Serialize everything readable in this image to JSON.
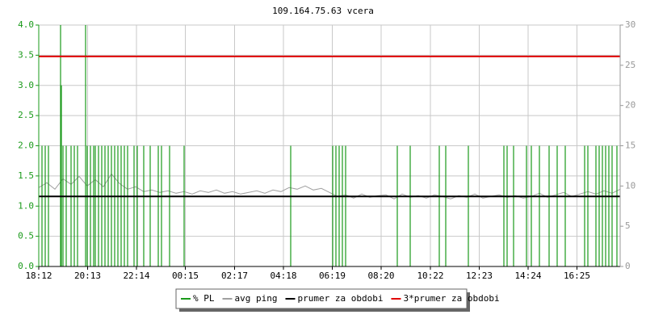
{
  "chart_data": {
    "type": "line",
    "title": "109.164.75.63 vcera",
    "xlim": [
      0,
      1440
    ],
    "xticks": [
      {
        "value": 0,
        "label": "18:12"
      },
      {
        "value": 121,
        "label": "20:13"
      },
      {
        "value": 242,
        "label": "22:14"
      },
      {
        "value": 363,
        "label": "00:15"
      },
      {
        "value": 485,
        "label": "02:17"
      },
      {
        "value": 606,
        "label": "04:18"
      },
      {
        "value": 727,
        "label": "06:19"
      },
      {
        "value": 848,
        "label": "08:20"
      },
      {
        "value": 970,
        "label": "10:22"
      },
      {
        "value": 1091,
        "label": "12:23"
      },
      {
        "value": 1212,
        "label": "14:24"
      },
      {
        "value": 1333,
        "label": "16:25"
      }
    ],
    "ylim": [
      0,
      4
    ],
    "yticks": [
      {
        "value": 0,
        "label": "0.0"
      },
      {
        "value": 0.5,
        "label": "0.5"
      },
      {
        "value": 1,
        "label": "1.0"
      },
      {
        "value": 1.5,
        "label": "1.5"
      },
      {
        "value": 2,
        "label": "2.0"
      },
      {
        "value": 2.5,
        "label": "2.5"
      },
      {
        "value": 3,
        "label": "3.0"
      },
      {
        "value": 3.5,
        "label": "3.5"
      },
      {
        "value": 4,
        "label": "4.0"
      }
    ],
    "y2lim": [
      0,
      30
    ],
    "y2ticks": [
      0,
      5,
      10,
      15,
      20,
      25,
      30
    ],
    "grid": true,
    "series": [
      {
        "name": "% PL",
        "color": "#1a9a1a",
        "style": "spikes",
        "x": [
          8,
          16,
          24,
          54,
          56,
          60,
          68,
          80,
          88,
          96,
          116,
          120,
          128,
          136,
          140,
          148,
          156,
          164,
          172,
          180,
          188,
          196,
          204,
          212,
          220,
          236,
          244,
          260,
          276,
          296,
          304,
          324,
          360,
          624,
          728,
          736,
          744,
          752,
          760,
          888,
          920,
          992,
          1008,
          1064,
          1152,
          1160,
          1176,
          1208,
          1220,
          1240,
          1264,
          1284,
          1304,
          1352,
          1360,
          1380,
          1388,
          1396,
          1404,
          1412,
          1420,
          1432
        ],
        "values": [
          2,
          2,
          2,
          4,
          3,
          2,
          2,
          2,
          2,
          2,
          4,
          2,
          2,
          2,
          2,
          2,
          2,
          2,
          2,
          2,
          2,
          2,
          2,
          2,
          2,
          2,
          2,
          2,
          2,
          2,
          2,
          2,
          2,
          2,
          2,
          2,
          2,
          2,
          2,
          2,
          2,
          2,
          2,
          2,
          2,
          2,
          2,
          2,
          2,
          2,
          2,
          2,
          2,
          2,
          2,
          2,
          2,
          2,
          2,
          2,
          2,
          2
        ]
      },
      {
        "name": "avg ping",
        "color": "#a0a0a0",
        "style": "line",
        "axis": "y2",
        "x": [
          0,
          20,
          40,
          60,
          80,
          100,
          120,
          140,
          160,
          180,
          200,
          220,
          240,
          260,
          280,
          300,
          320,
          340,
          360,
          380,
          400,
          420,
          440,
          460,
          480,
          500,
          520,
          540,
          560,
          580,
          600,
          620,
          640,
          660,
          680,
          700,
          720,
          740,
          760,
          780,
          800,
          820,
          840,
          860,
          880,
          900,
          920,
          940,
          960,
          980,
          1000,
          1020,
          1040,
          1060,
          1080,
          1100,
          1120,
          1140,
          1160,
          1180,
          1200,
          1220,
          1240,
          1260,
          1280,
          1300,
          1320,
          1340,
          1360,
          1380,
          1400,
          1420,
          1440
        ],
        "values": [
          9.8,
          10.4,
          9.6,
          10.9,
          10.2,
          11.2,
          10.0,
          10.8,
          9.9,
          11.5,
          10.3,
          9.6,
          9.9,
          9.3,
          9.5,
          9.2,
          9.4,
          9.1,
          9.3,
          9.0,
          9.4,
          9.2,
          9.5,
          9.1,
          9.3,
          9.0,
          9.2,
          9.4,
          9.1,
          9.5,
          9.3,
          9.8,
          9.6,
          10.0,
          9.5,
          9.7,
          9.2,
          8.7,
          8.9,
          8.5,
          9.0,
          8.6,
          8.8,
          8.9,
          8.4,
          9.0,
          8.6,
          8.8,
          8.5,
          8.9,
          8.7,
          8.4,
          8.8,
          8.6,
          9.0,
          8.5,
          8.7,
          8.9,
          8.6,
          8.8,
          8.5,
          8.7,
          9.1,
          8.6,
          8.9,
          9.2,
          8.7,
          9.0,
          9.3,
          9.0,
          9.4,
          9.1,
          9.6
        ]
      },
      {
        "name": "prumer za obdobi",
        "color": "#000000",
        "style": "hline",
        "axis": "y2",
        "values": [
          8.7
        ]
      },
      {
        "name": "3*prumer za obdobi",
        "color": "#e00000",
        "style": "hline",
        "axis": "y2",
        "values": [
          26.1
        ]
      }
    ]
  }
}
